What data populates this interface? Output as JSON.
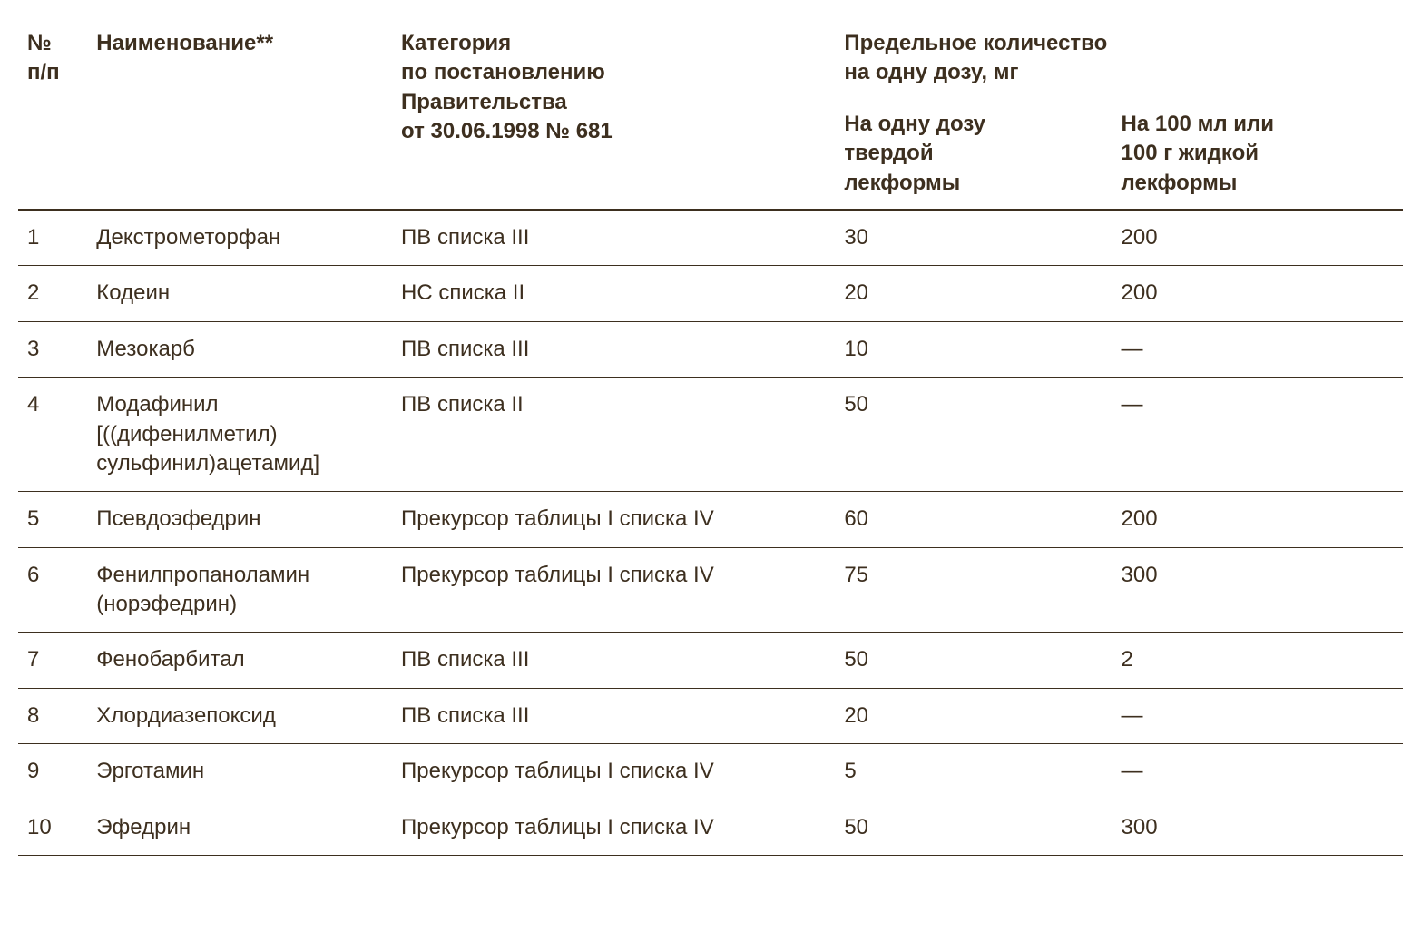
{
  "table": {
    "type": "table",
    "text_color": "#3d2f1f",
    "background_color": "#ffffff",
    "border_color": "#3d2f1f",
    "header_fontweight": "700",
    "body_fontweight": "400",
    "fontsize_header": 24,
    "fontsize_body": 24,
    "columns": {
      "num": {
        "label": "№\nп/п",
        "width_pct": 5,
        "align": "left"
      },
      "name": {
        "label": "Наименование**",
        "width_pct": 22,
        "align": "left"
      },
      "cat": {
        "label": "Категория\nпо постановлению\nПравительства\nот 30.06.1998 № 681",
        "width_pct": 32,
        "align": "left"
      },
      "limit_group": {
        "label": "Предельное количество\nна одну дозу, мг"
      },
      "solid": {
        "label": "На одну дозу\nтвердой\nлекформы",
        "width_pct": 20,
        "align": "left"
      },
      "liquid": {
        "label": "На 100 мл или\n100 г жидкой\nлекформы",
        "width_pct": 21,
        "align": "left"
      }
    },
    "rows": [
      {
        "num": "1",
        "name": "Декстрометорфан",
        "cat": "ПВ списка III",
        "solid": "30",
        "liquid": "200"
      },
      {
        "num": "2",
        "name": "Кодеин",
        "cat": "НС списка II",
        "solid": "20",
        "liquid": "200"
      },
      {
        "num": "3",
        "name": "Мезокарб",
        "cat": "ПВ списка III",
        "solid": "10",
        "liquid": "—"
      },
      {
        "num": "4",
        "name": "Модафинил\n[((дифенилметил)\nсульфинил)ацетамид]",
        "cat": "ПВ списка II",
        "solid": "50",
        "liquid": "—"
      },
      {
        "num": "5",
        "name": "Псевдоэфедрин",
        "cat": "Прекурсор таблицы I списка IV",
        "solid": "60",
        "liquid": "200"
      },
      {
        "num": "6",
        "name": "Фенилпропаноламин\n(норэфедрин)",
        "cat": "Прекурсор таблицы I списка IV",
        "solid": "75",
        "liquid": "300"
      },
      {
        "num": "7",
        "name": "Фенобарбитал",
        "cat": "ПВ списка III",
        "solid": "50",
        "liquid": "2"
      },
      {
        "num": "8",
        "name": "Хлордиазепоксид",
        "cat": "ПВ списка III",
        "solid": "20",
        "liquid": "—"
      },
      {
        "num": "9",
        "name": "Эрготамин",
        "cat": "Прекурсор таблицы I списка IV",
        "solid": "5",
        "liquid": "—"
      },
      {
        "num": "10",
        "name": "Эфедрин",
        "cat": "Прекурсор таблицы I списка IV",
        "solid": "50",
        "liquid": "300"
      }
    ]
  }
}
